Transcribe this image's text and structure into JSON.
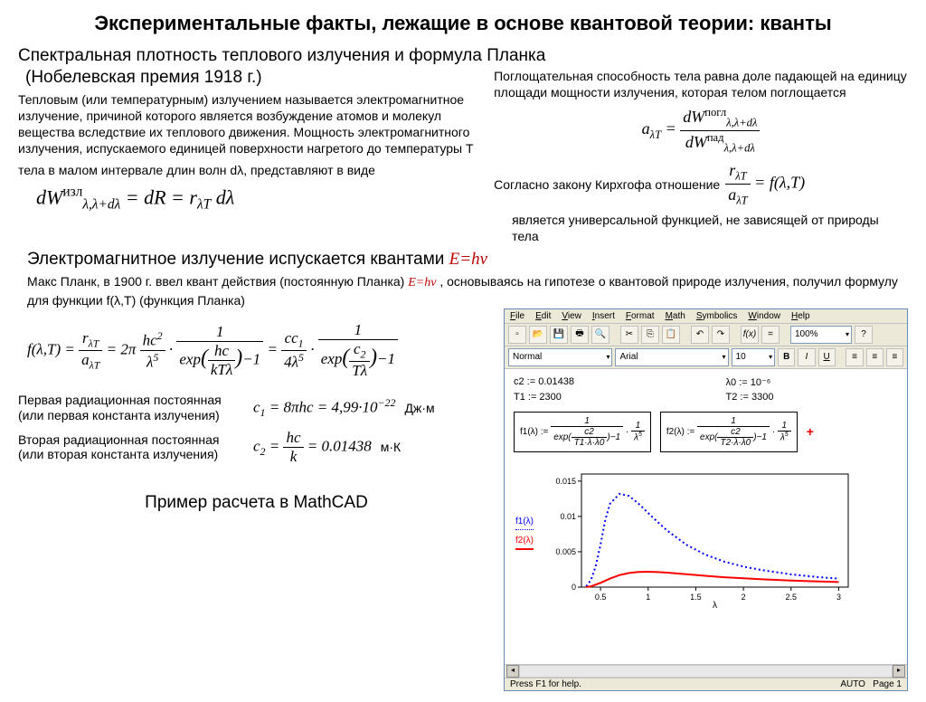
{
  "title": "Экспериментальные факты, лежащие в основе квантовой теории: кванты",
  "subtitle": "Спектральная плотность теплового излучения и формула Планка",
  "nobel": "(Нобелевская премия 1918 г.)",
  "left_para": "Тепловым (или температурным) излучением называется электромагнитное излучение, причиной которого является возбуждение атомов и молекул вещества вследствие их теплового движения. Мощность электромагнитного излучения, испускаемого единицей поверхности нагретого до температуры T",
  "left_para2": "тела в малом интервале длин волн dλ, представляют в виде",
  "right_para": "Поглощательная способность тела равна доле падающей на единицу площади мощности излучения, которая телом поглощается",
  "kirchhoff": "Согласно закону Кирхгофа отношение",
  "universal": "является универсальной функцией, не зависящей от природы тела",
  "em_line_pre": "Электромагнитное излучение испускается квантами ",
  "em_ehv": "E=hν",
  "planck_text_pre": "Макс Планк, в 1900 г. ввел квант действия (постоянную Планка) ",
  "planck_text_post": " , основываясь на гипотезе о квантовой природе излучения, получил формулу для функции f(λ,T)  (функция Планка)",
  "formulas": {
    "dW": "dW^{изл}_{λ,λ+dλ} = dR = r_{λT} dλ",
    "aLT": "a_{λT} = dW^{погл}_{λ,λ+dλ} / dW^{пад}_{λ,λ+dλ}",
    "ratio": "r_{λT} / a_{λT} = f(λ,T)",
    "planck_full": "f(λ,T) = r_{λT}/a_{λT} = 2π (hc²/λ⁵) · 1/(exp(hc/kTλ)−1) = (cc₁/4λ⁵) · 1/(exp(c₂/Tλ)−1)",
    "c1_label": "Первая радиационная постоянная (или первая константа излучения)",
    "c1": "c₁ = 8πhc = 4,99·10⁻²²",
    "c1_unit": "Дж·м",
    "c2_label": "Вторая радиационная постоянная (или вторая константа излучения)",
    "c2": "c₂ = hc/k = 0.01438",
    "c2_unit": "м·К"
  },
  "mathcad_caption": "Пример расчета в MathCAD",
  "mathcad": {
    "menu": [
      "File",
      "Edit",
      "View",
      "Insert",
      "Format",
      "Math",
      "Symbolics",
      "Window",
      "Help"
    ],
    "toolbar2": {
      "style": "Normal",
      "font": "Arial",
      "size": "10"
    },
    "vars": {
      "c2": "c2 := 0.01438",
      "l0": "λ0 := 10⁻⁶",
      "T1": "T1 := 2300",
      "T2": "T2 := 3300"
    },
    "f1": "f1(λ) := 1/(exp(c2/(T1·λ·λ0))−1) · 1/λ⁵",
    "f2": "f2(λ) := 1/(exp(c2/(T2·λ·λ0))−1) · 1/λ⁵",
    "chart": {
      "type": "line",
      "xlim": [
        0.3,
        3.1
      ],
      "ylim": [
        0,
        0.016
      ],
      "xticks": [
        0.5,
        1,
        1.5,
        2,
        2.5,
        3
      ],
      "yticks": [
        0,
        0.005,
        0.01,
        0.015
      ],
      "xlabel": "λ",
      "series": [
        {
          "name": "f1(λ)",
          "color": "#0000ff",
          "style": "dotted",
          "width": 2,
          "x": [
            0.35,
            0.4,
            0.45,
            0.5,
            0.55,
            0.6,
            0.7,
            0.8,
            0.9,
            1.0,
            1.1,
            1.2,
            1.4,
            1.6,
            1.8,
            2.0,
            2.2,
            2.5,
            2.8,
            3.0
          ],
          "y": [
            0.0001,
            0.001,
            0.003,
            0.006,
            0.0095,
            0.0118,
            0.0132,
            0.0129,
            0.0118,
            0.0105,
            0.0092,
            0.008,
            0.006,
            0.0046,
            0.0036,
            0.0029,
            0.0024,
            0.0018,
            0.0014,
            0.0012
          ]
        },
        {
          "name": "f2(λ)",
          "color": "#ff0000",
          "style": "solid",
          "width": 2,
          "x": [
            0.35,
            0.4,
            0.5,
            0.6,
            0.7,
            0.8,
            0.9,
            1.0,
            1.1,
            1.2,
            1.4,
            1.6,
            1.8,
            2.0,
            2.2,
            2.5,
            2.8,
            3.0
          ],
          "y": [
            1e-05,
            0.0001,
            0.0006,
            0.0012,
            0.0017,
            0.002,
            0.00215,
            0.00218,
            0.00213,
            0.00205,
            0.00182,
            0.0016,
            0.0014,
            0.00124,
            0.0011,
            0.00093,
            0.0008,
            0.00072
          ]
        }
      ],
      "background_color": "#ffffff",
      "axis_color": "#000000"
    },
    "status": {
      "left": "Press F1 for help.",
      "auto": "AUTO",
      "page": "Page 1"
    }
  }
}
